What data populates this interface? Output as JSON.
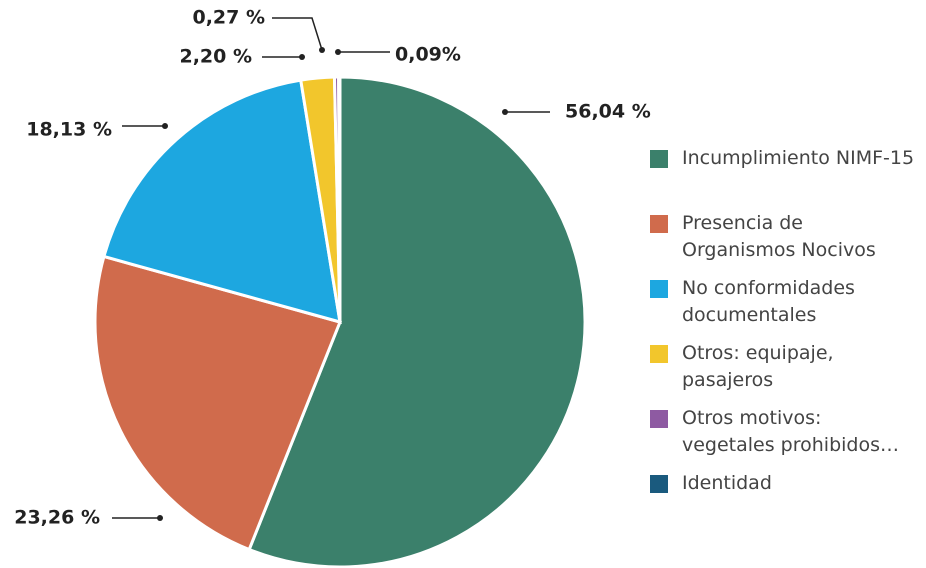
{
  "chart_data": {
    "type": "pie",
    "categories": [
      "Incumplimiento NIMF-15",
      "Presencia de Organismos Nocivos",
      "No conformidades documentales",
      "Otros: equipaje, pasajeros",
      "Otros motivos: vegetales prohibidos…",
      "Identidad"
    ],
    "values": [
      56.04,
      23.26,
      18.13,
      2.2,
      0.27,
      0.09
    ],
    "value_labels": [
      "56,04 %",
      "23,26 %",
      "18,13 %",
      "2,20 %",
      "0,27 %",
      "0,09%"
    ],
    "colors": [
      "#3b806b",
      "#d06b4c",
      "#1da7e0",
      "#f2c62c",
      "#8e5aa2",
      "#1a5a7e"
    ],
    "legend": "right"
  }
}
